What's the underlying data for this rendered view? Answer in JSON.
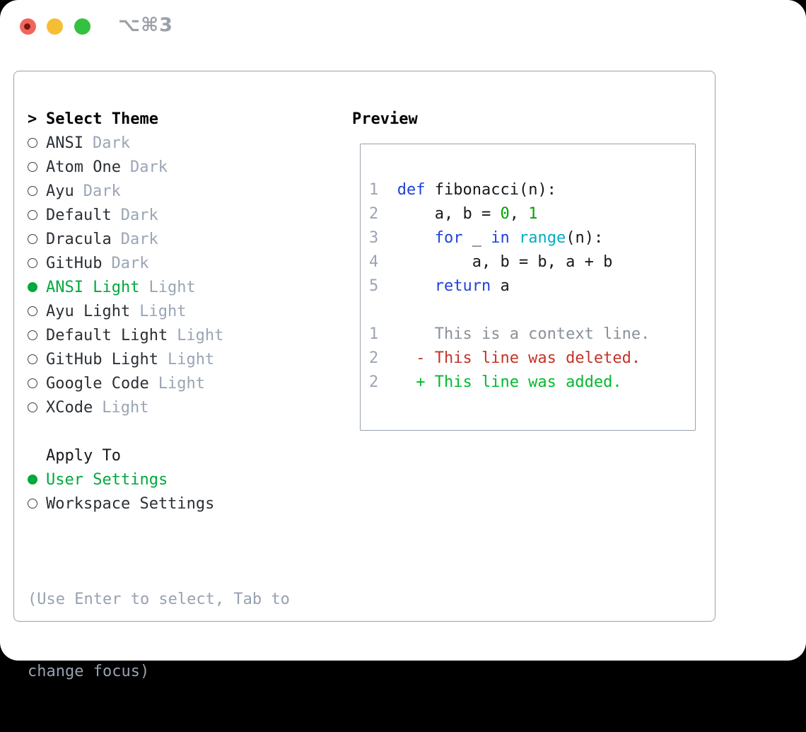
{
  "titlebar": {
    "shortcut": "⌥⌘3",
    "buttons": [
      "close",
      "minimize",
      "zoom"
    ]
  },
  "theme_list": {
    "cursor": ">",
    "title": "Select Theme",
    "items": [
      {
        "name": "ANSI",
        "tag": "Dark",
        "selected": false
      },
      {
        "name": "Atom One",
        "tag": "Dark",
        "selected": false
      },
      {
        "name": "Ayu",
        "tag": "Dark",
        "selected": false
      },
      {
        "name": "Default",
        "tag": "Dark",
        "selected": false
      },
      {
        "name": "Dracula",
        "tag": "Dark",
        "selected": false
      },
      {
        "name": "GitHub",
        "tag": "Dark",
        "selected": false
      },
      {
        "name": "ANSI Light",
        "tag": "Light",
        "selected": true
      },
      {
        "name": "Ayu Light",
        "tag": "Light",
        "selected": false
      },
      {
        "name": "Default Light",
        "tag": "Light",
        "selected": false
      },
      {
        "name": "GitHub Light",
        "tag": "Light",
        "selected": false
      },
      {
        "name": "Google Code",
        "tag": "Light",
        "selected": false
      },
      {
        "name": "XCode",
        "tag": "Light",
        "selected": false
      }
    ]
  },
  "apply_to": {
    "title": "Apply To",
    "items": [
      {
        "name": "User Settings",
        "selected": true
      },
      {
        "name": "Workspace Settings",
        "selected": false
      }
    ]
  },
  "help_text": {
    "line1": "(Use Enter to select, Tab to",
    "line2": "change focus)"
  },
  "preview": {
    "title": "Preview",
    "code": [
      {
        "segments": [
          {
            "text": "1  ",
            "type": "lineno"
          },
          {
            "text": "def",
            "type": "kw"
          },
          {
            "text": " fibonacci(n):",
            "type": "plain"
          }
        ]
      },
      {
        "segments": [
          {
            "text": "2  ",
            "type": "lineno"
          },
          {
            "text": "    a, b = ",
            "type": "plain"
          },
          {
            "text": "0",
            "type": "num"
          },
          {
            "text": ", ",
            "type": "plain"
          },
          {
            "text": "1",
            "type": "num"
          }
        ]
      },
      {
        "segments": [
          {
            "text": "3  ",
            "type": "lineno"
          },
          {
            "text": "    ",
            "type": "plain"
          },
          {
            "text": "for",
            "type": "kw"
          },
          {
            "text": " _ ",
            "type": "plain"
          },
          {
            "text": "in",
            "type": "kw"
          },
          {
            "text": " ",
            "type": "plain"
          },
          {
            "text": "range",
            "type": "builtin"
          },
          {
            "text": "(n):",
            "type": "plain"
          }
        ]
      },
      {
        "segments": [
          {
            "text": "4  ",
            "type": "lineno"
          },
          {
            "text": "        a, b = b, a + b",
            "type": "plain"
          }
        ]
      },
      {
        "segments": [
          {
            "text": "5  ",
            "type": "lineno"
          },
          {
            "text": "    ",
            "type": "plain"
          },
          {
            "text": "return",
            "type": "kw"
          },
          {
            "text": " a",
            "type": "plain"
          }
        ]
      },
      {
        "segments": []
      },
      {
        "segments": [
          {
            "text": "1  ",
            "type": "lineno"
          },
          {
            "text": "    This is a context line.",
            "type": "ctx"
          }
        ]
      },
      {
        "segments": [
          {
            "text": "2  ",
            "type": "lineno"
          },
          {
            "text": "  - This line was deleted.",
            "type": "del"
          }
        ]
      },
      {
        "segments": [
          {
            "text": "2  ",
            "type": "lineno"
          },
          {
            "text": "  + This line was added.",
            "type": "add"
          }
        ]
      }
    ]
  },
  "colors": {
    "selected_green": "#00a93c",
    "added_green": "#00bb2e",
    "number_green": "#00a400",
    "deleted_red": "#c53325",
    "keyword_blue": "#1e43d8",
    "builtin_cyan": "#00aebe",
    "muted_tag_gray": "#9aa5b4",
    "help_gray": "#97a1b1",
    "border_gray": "#99a2ad",
    "traffic_red": "#f0665c",
    "traffic_yellow": "#f6bd35",
    "traffic_green": "#34c13f"
  }
}
